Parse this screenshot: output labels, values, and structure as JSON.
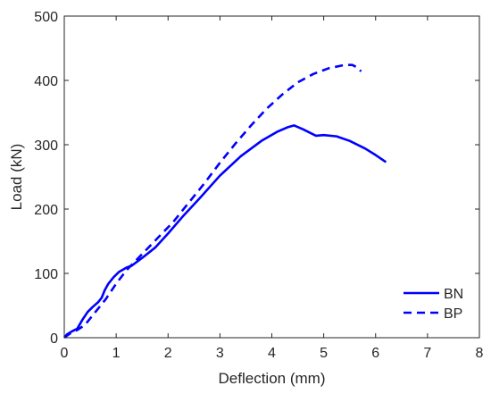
{
  "chart_data": {
    "type": "line",
    "title": "",
    "xlabel": "Deflection (mm)",
    "ylabel": "Load (kN)",
    "xlim": [
      0,
      8
    ],
    "ylim": [
      0,
      500
    ],
    "x_ticks": [
      0,
      1,
      2,
      3,
      4,
      5,
      6,
      7,
      8
    ],
    "y_ticks": [
      0,
      100,
      200,
      300,
      400,
      500
    ],
    "grid": false,
    "legend_position": "bottom-right",
    "series": [
      {
        "name": "BN",
        "style": "solid",
        "color": "#0000ff",
        "points": [
          [
            0,
            0
          ],
          [
            0.05,
            5
          ],
          [
            0.15,
            10
          ],
          [
            0.25,
            14
          ],
          [
            0.35,
            28
          ],
          [
            0.45,
            40
          ],
          [
            0.55,
            48
          ],
          [
            0.65,
            55
          ],
          [
            0.72,
            62
          ],
          [
            0.78,
            74
          ],
          [
            0.85,
            84
          ],
          [
            0.95,
            94
          ],
          [
            1.05,
            102
          ],
          [
            1.2,
            109
          ],
          [
            1.3,
            112
          ],
          [
            1.5,
            124
          ],
          [
            1.75,
            140
          ],
          [
            2.0,
            162
          ],
          [
            2.3,
            190
          ],
          [
            2.6,
            216
          ],
          [
            3.0,
            252
          ],
          [
            3.4,
            282
          ],
          [
            3.8,
            306
          ],
          [
            4.1,
            320
          ],
          [
            4.3,
            327
          ],
          [
            4.43,
            330
          ],
          [
            4.6,
            324
          ],
          [
            4.85,
            314
          ],
          [
            5.0,
            315
          ],
          [
            5.25,
            313
          ],
          [
            5.5,
            306
          ],
          [
            5.8,
            294
          ],
          [
            6.0,
            284
          ],
          [
            6.2,
            273
          ]
        ]
      },
      {
        "name": "BP",
        "style": "dashed",
        "color": "#0000ff",
        "points": [
          [
            0,
            0
          ],
          [
            0.1,
            6
          ],
          [
            0.25,
            12
          ],
          [
            0.4,
            20
          ],
          [
            0.6,
            40
          ],
          [
            0.8,
            60
          ],
          [
            1.0,
            84
          ],
          [
            1.2,
            105
          ],
          [
            1.5,
            130
          ],
          [
            1.8,
            155
          ],
          [
            2.1,
            180
          ],
          [
            2.4,
            210
          ],
          [
            2.7,
            240
          ],
          [
            3.0,
            272
          ],
          [
            3.3,
            302
          ],
          [
            3.6,
            330
          ],
          [
            3.9,
            356
          ],
          [
            4.2,
            378
          ],
          [
            4.5,
            397
          ],
          [
            4.8,
            410
          ],
          [
            5.1,
            419
          ],
          [
            5.4,
            424
          ],
          [
            5.55,
            424
          ],
          [
            5.65,
            420
          ],
          [
            5.72,
            414
          ]
        ]
      }
    ]
  }
}
